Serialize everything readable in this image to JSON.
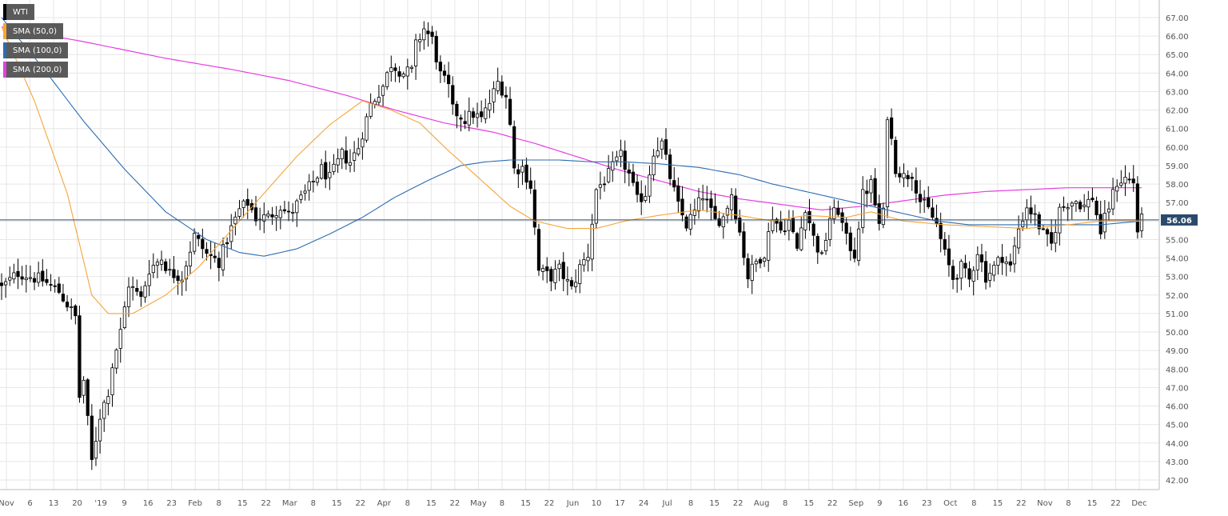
{
  "chart_data": {
    "type": "candlestick",
    "title": "",
    "ylim": [
      41.5,
      67.8
    ],
    "yticks": [
      "67.00",
      "66.00",
      "65.00",
      "64.00",
      "63.00",
      "62.00",
      "61.00",
      "60.00",
      "59.00",
      "58.00",
      "57.00",
      "56.00",
      "55.00",
      "54.00",
      "53.00",
      "52.00",
      "51.00",
      "50.00",
      "49.00",
      "48.00",
      "47.00",
      "46.00",
      "45.00",
      "44.00",
      "43.00",
      "42.00"
    ],
    "xlabels": [
      "Nov",
      "6",
      "13",
      "20",
      "'19",
      "9",
      "16",
      "23",
      "Feb",
      "8",
      "15",
      "22",
      "Mar",
      "8",
      "15",
      "22",
      "Apr",
      "8",
      "15",
      "22",
      "May",
      "8",
      "15",
      "22",
      "Jun",
      "10",
      "17",
      "24",
      "Jul",
      "8",
      "15",
      "22",
      "Aug",
      "8",
      "15",
      "22",
      "Sep",
      "9",
      "16",
      "23",
      "Oct",
      "8",
      "15",
      "22",
      "Nov",
      "8",
      "15",
      "22",
      "Dec"
    ],
    "current_price": "56.06",
    "colors": {
      "up": "#ffffff",
      "down": "#000000",
      "grid": "#e6e6e6",
      "sma50": "#f5a53a",
      "sma100": "#2c6cb0",
      "sma200": "#e53ee0",
      "price_line": "#2b4a6b",
      "price_tag": "#2b4a6b"
    },
    "legend": [
      {
        "label": "WTI",
        "color": "#000000"
      },
      {
        "label": "SMA (50,0)",
        "color": "#f5a53a"
      },
      {
        "label": "SMA (100,0)",
        "color": "#2c6cb0"
      },
      {
        "label": "SMA (200,0)",
        "color": "#e53ee0"
      }
    ],
    "close_path": [
      [
        0,
        52.4
      ],
      [
        4,
        53.2
      ],
      [
        10,
        52.8
      ],
      [
        14,
        52.2
      ],
      [
        18,
        50.8
      ],
      [
        19,
        46.5
      ],
      [
        20,
        47.4
      ],
      [
        22,
        43.0
      ],
      [
        24,
        45.5
      ],
      [
        26,
        46.8
      ],
      [
        27,
        48.2
      ],
      [
        29,
        50.0
      ],
      [
        31,
        52.6
      ],
      [
        34,
        51.8
      ],
      [
        36,
        53.4
      ],
      [
        39,
        54.0
      ],
      [
        41,
        53.2
      ],
      [
        44,
        53.0
      ],
      [
        47,
        55.2
      ],
      [
        50,
        54.2
      ],
      [
        53,
        53.8
      ],
      [
        56,
        55.6
      ],
      [
        58,
        56.6
      ],
      [
        60,
        57.0
      ],
      [
        62,
        56.2
      ],
      [
        65,
        56.2
      ],
      [
        68,
        56.8
      ],
      [
        70,
        56.3
      ],
      [
        73,
        57.2
      ],
      [
        75,
        57.8
      ],
      [
        78,
        58.8
      ],
      [
        80,
        58.3
      ],
      [
        83,
        59.6
      ],
      [
        85,
        59.2
      ],
      [
        87,
        60.0
      ],
      [
        90,
        62.3
      ],
      [
        93,
        63.3
      ],
      [
        95,
        64.5
      ],
      [
        98,
        64.0
      ],
      [
        100,
        64.1
      ],
      [
        101,
        65.5
      ],
      [
        103,
        66.4
      ],
      [
        105,
        65.8
      ],
      [
        107,
        63.9
      ],
      [
        109,
        63.2
      ],
      [
        110,
        62.0
      ],
      [
        113,
        61.5
      ],
      [
        115,
        61.8
      ],
      [
        117,
        61.5
      ],
      [
        119,
        62.4
      ],
      [
        121,
        63.5
      ],
      [
        123,
        62.8
      ],
      [
        124,
        61.2
      ],
      [
        125,
        58.8
      ],
      [
        127,
        58.9
      ],
      [
        129,
        57.9
      ],
      [
        131,
        53.3
      ],
      [
        134,
        53.0
      ],
      [
        136,
        53.4
      ],
      [
        139,
        52.3
      ],
      [
        141,
        53.5
      ],
      [
        143,
        54.2
      ],
      [
        145,
        57.7
      ],
      [
        148,
        58.5
      ],
      [
        149,
        58.9
      ],
      [
        151,
        59.5
      ],
      [
        153,
        58.5
      ],
      [
        155,
        57.1
      ],
      [
        157,
        57.5
      ],
      [
        159,
        59.8
      ],
      [
        161,
        60.2
      ],
      [
        163,
        58.4
      ],
      [
        165,
        56.8
      ],
      [
        167,
        55.8
      ],
      [
        169,
        56.5
      ],
      [
        171,
        57.4
      ],
      [
        174,
        56.0
      ],
      [
        176,
        56.2
      ],
      [
        178,
        57.5
      ],
      [
        180,
        55.4
      ],
      [
        182,
        53.0
      ],
      [
        184,
        53.8
      ],
      [
        186,
        54.3
      ],
      [
        188,
        56.3
      ],
      [
        190,
        55.5
      ],
      [
        192,
        56.0
      ],
      [
        194,
        54.5
      ],
      [
        196,
        56.8
      ],
      [
        198,
        55.1
      ],
      [
        200,
        54.0
      ],
      [
        202,
        56.2
      ],
      [
        204,
        56.6
      ],
      [
        206,
        55.0
      ],
      [
        208,
        54.2
      ],
      [
        210,
        57.4
      ],
      [
        212,
        58.0
      ],
      [
        214,
        55.8
      ],
      [
        215,
        56.4
      ],
      [
        216,
        61.8
      ],
      [
        218,
        58.9
      ],
      [
        220,
        58.4
      ],
      [
        222,
        58.6
      ],
      [
        224,
        57.1
      ],
      [
        226,
        56.6
      ],
      [
        228,
        55.8
      ],
      [
        230,
        54.2
      ],
      [
        232,
        52.9
      ],
      [
        234,
        53.5
      ],
      [
        236,
        52.8
      ],
      [
        238,
        54.4
      ],
      [
        240,
        53.0
      ],
      [
        242,
        53.5
      ],
      [
        244,
        54.1
      ],
      [
        246,
        53.5
      ],
      [
        248,
        55.6
      ],
      [
        250,
        56.8
      ],
      [
        252,
        56.2
      ],
      [
        254,
        55.3
      ],
      [
        256,
        54.7
      ],
      [
        258,
        56.6
      ],
      [
        260,
        57.0
      ],
      [
        262,
        57.1
      ],
      [
        264,
        56.8
      ],
      [
        266,
        57.3
      ],
      [
        268,
        55.4
      ],
      [
        270,
        56.8
      ],
      [
        272,
        58.1
      ],
      [
        274,
        58.3
      ],
      [
        276,
        58.1
      ],
      [
        277,
        55.5
      ],
      [
        278,
        56.06
      ]
    ],
    "sma50": [
      [
        0,
        66.5
      ],
      [
        8,
        62.5
      ],
      [
        16,
        57.5
      ],
      [
        22,
        52.0
      ],
      [
        26,
        51.0
      ],
      [
        32,
        51.0
      ],
      [
        40,
        52.0
      ],
      [
        48,
        53.5
      ],
      [
        56,
        55.5
      ],
      [
        64,
        57.5
      ],
      [
        72,
        59.5
      ],
      [
        80,
        61.2
      ],
      [
        88,
        62.5
      ],
      [
        95,
        62.0
      ],
      [
        102,
        61.3
      ],
      [
        108,
        60.0
      ],
      [
        113,
        59.0
      ],
      [
        119,
        57.8
      ],
      [
        124,
        56.8
      ],
      [
        130,
        56.0
      ],
      [
        138,
        55.6
      ],
      [
        145,
        55.6
      ],
      [
        152,
        56.0
      ],
      [
        160,
        56.3
      ],
      [
        170,
        56.6
      ],
      [
        180,
        56.3
      ],
      [
        188,
        56.0
      ],
      [
        196,
        56.3
      ],
      [
        206,
        56.2
      ],
      [
        212,
        56.5
      ],
      [
        220,
        56.0
      ],
      [
        230,
        55.8
      ],
      [
        240,
        55.7
      ],
      [
        250,
        55.6
      ],
      [
        260,
        55.8
      ],
      [
        268,
        56.0
      ],
      [
        278,
        56.0
      ]
    ],
    "sma100": [
      [
        0,
        67.0
      ],
      [
        10,
        64.3
      ],
      [
        20,
        61.4
      ],
      [
        30,
        58.8
      ],
      [
        40,
        56.5
      ],
      [
        50,
        55.0
      ],
      [
        58,
        54.3
      ],
      [
        64,
        54.1
      ],
      [
        72,
        54.5
      ],
      [
        80,
        55.3
      ],
      [
        88,
        56.2
      ],
      [
        96,
        57.3
      ],
      [
        104,
        58.2
      ],
      [
        112,
        59.0
      ],
      [
        118,
        59.2
      ],
      [
        124,
        59.3
      ],
      [
        130,
        59.3
      ],
      [
        136,
        59.3
      ],
      [
        144,
        59.2
      ],
      [
        152,
        59.2
      ],
      [
        160,
        59.1
      ],
      [
        170,
        58.9
      ],
      [
        180,
        58.5
      ],
      [
        188,
        58.0
      ],
      [
        196,
        57.6
      ],
      [
        204,
        57.2
      ],
      [
        212,
        56.8
      ],
      [
        220,
        56.4
      ],
      [
        228,
        56.0
      ],
      [
        236,
        55.8
      ],
      [
        244,
        55.8
      ],
      [
        252,
        55.8
      ],
      [
        260,
        55.8
      ],
      [
        268,
        55.8
      ],
      [
        278,
        56.0
      ]
    ],
    "sma200": [
      [
        0,
        66.5
      ],
      [
        20,
        65.7
      ],
      [
        40,
        64.8
      ],
      [
        56,
        64.2
      ],
      [
        70,
        63.6
      ],
      [
        84,
        62.8
      ],
      [
        96,
        62.0
      ],
      [
        108,
        61.3
      ],
      [
        120,
        60.8
      ],
      [
        130,
        60.2
      ],
      [
        140,
        59.5
      ],
      [
        150,
        58.8
      ],
      [
        160,
        58.2
      ],
      [
        170,
        57.6
      ],
      [
        180,
        57.2
      ],
      [
        190,
        56.9
      ],
      [
        200,
        56.6
      ],
      [
        210,
        56.8
      ],
      [
        220,
        57.1
      ],
      [
        230,
        57.4
      ],
      [
        240,
        57.6
      ],
      [
        250,
        57.7
      ],
      [
        260,
        57.8
      ],
      [
        270,
        57.8
      ],
      [
        278,
        57.8
      ]
    ]
  }
}
